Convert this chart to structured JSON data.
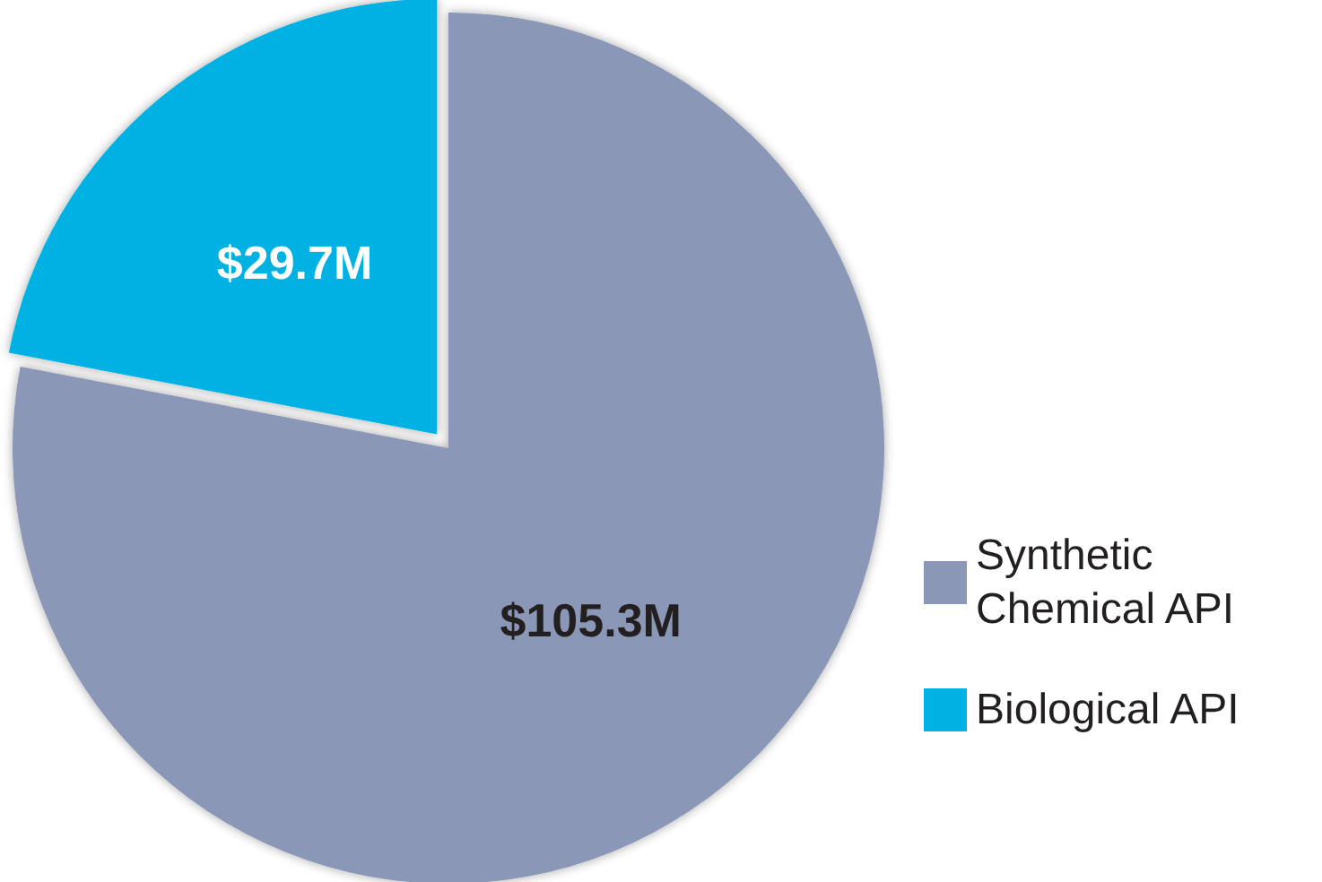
{
  "chart_data": {
    "type": "pie",
    "categories": [
      "Synthetic Chemical API",
      "Biological API"
    ],
    "values": [
      105.3,
      29.7
    ],
    "colors": [
      "#8a97b6",
      "#00b2e3"
    ],
    "value_labels": [
      "$105.3M",
      "$29.7M"
    ],
    "legend": "right"
  }
}
